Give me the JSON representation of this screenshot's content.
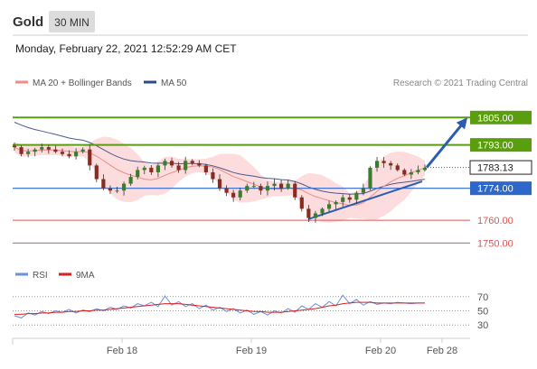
{
  "header": {
    "instrument": "Gold",
    "timeframe": "30 MIN",
    "datetime": "Monday, February 22, 2021 12:52:29 AM CET"
  },
  "legend": {
    "ma20_label": "MA 20 + Bollinger Bands",
    "ma50_label": "MA 50",
    "copyright": "Research © 2021 Trading Central",
    "rsi_label": "RSI",
    "ma9_label": "9MA"
  },
  "colors": {
    "resistance": "#5a9e0f",
    "support": "#2d67c9",
    "current": "#222222",
    "minor_support": "#e05454",
    "arrow": "#2c5db0",
    "ma20": "#f08a8a",
    "bollinger_fill": "#fcdcdc",
    "ma50": "#4a5a8c",
    "candle_up": "#3a7d2c",
    "candle_down": "#8b2a1e",
    "rsi": "#6b8fe0",
    "rsi_ma": "#d82020"
  },
  "chart_data": {
    "type": "candlestick",
    "y_range": [
      1745,
      1815
    ],
    "x_ticks": [
      "Feb 18",
      "Feb 19",
      "Feb 20",
      "Feb 28"
    ],
    "levels": [
      {
        "value": 1805.0,
        "label": "1805.00",
        "kind": "resistance"
      },
      {
        "value": 1793.0,
        "label": "1793.00",
        "kind": "resistance"
      },
      {
        "value": 1783.13,
        "label": "1783.13",
        "kind": "current"
      },
      {
        "value": 1774.0,
        "label": "1774.00",
        "kind": "support"
      },
      {
        "value": 1760.0,
        "label": "1760.00",
        "kind": "minor_support"
      },
      {
        "value": 1750.0,
        "label": "1750.00",
        "kind": "minor_support"
      }
    ],
    "closes": [
      1792,
      1789,
      1790,
      1791,
      1792,
      1791,
      1790,
      1789,
      1788,
      1790,
      1791,
      1784,
      1778,
      1774,
      1773,
      1773,
      1776,
      1779,
      1782,
      1783,
      1781,
      1784,
      1786,
      1784,
      1782,
      1786,
      1785,
      1784,
      1781,
      1778,
      1774,
      1772,
      1770,
      1773,
      1775,
      1775,
      1773,
      1775,
      1776,
      1774,
      1776,
      1770,
      1765,
      1761,
      1763,
      1765,
      1767,
      1768,
      1770,
      1769,
      1772,
      1774,
      1783,
      1786,
      1785,
      1784,
      1782,
      1780,
      1781,
      1782,
      1783
    ],
    "rsi": {
      "levels": [
        70,
        50,
        30
      ],
      "range": [
        15,
        85
      ],
      "values": [
        43,
        40,
        47,
        44,
        49,
        46,
        50,
        48,
        52,
        47,
        51,
        49,
        53,
        50,
        55,
        52,
        57,
        54,
        60,
        57,
        62,
        56,
        71,
        58,
        63,
        56,
        60,
        53,
        58,
        51,
        55,
        49,
        53,
        47,
        51,
        45,
        49,
        44,
        50,
        47,
        53,
        48,
        57,
        52,
        60,
        55,
        63,
        57,
        72,
        60,
        66,
        58,
        63,
        59,
        61,
        60,
        62,
        61,
        60,
        61,
        61
      ],
      "ma_values": [
        45,
        45,
        46,
        46,
        47,
        47,
        48,
        48,
        49,
        49,
        50,
        50,
        51,
        51,
        52,
        53,
        54,
        55,
        56,
        57,
        58,
        59,
        60,
        60,
        60,
        59,
        58,
        57,
        56,
        55,
        54,
        53,
        52,
        51,
        50,
        49,
        49,
        48,
        48,
        48,
        49,
        50,
        51,
        52,
        53,
        55,
        57,
        58,
        60,
        61,
        62,
        62,
        62,
        61,
        61,
        61,
        61,
        61,
        61,
        61,
        61
      ]
    }
  }
}
